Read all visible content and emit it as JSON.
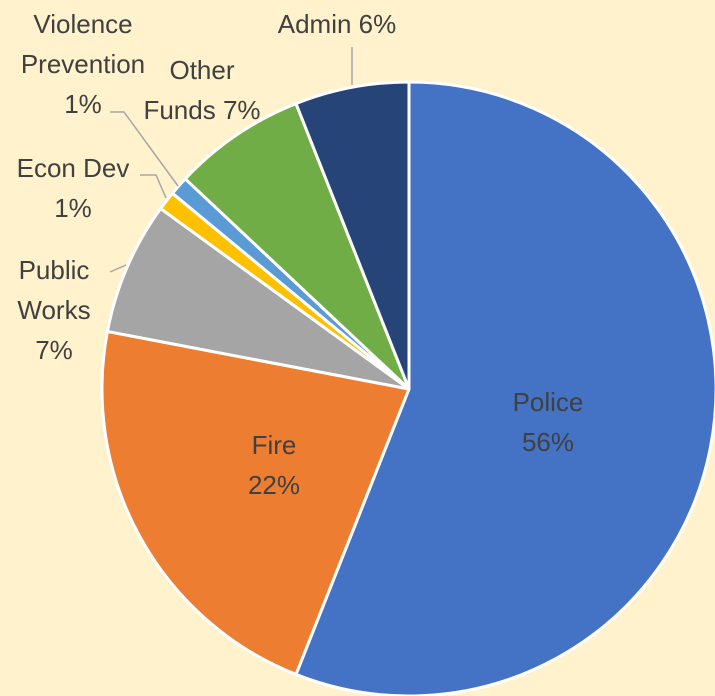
{
  "chart_data": {
    "type": "pie",
    "title": "",
    "start_angle_deg": 0,
    "direction": "clockwise",
    "slices": [
      {
        "category": "Police",
        "value": 56,
        "label_lines": [
          "Police",
          "56%"
        ],
        "color": "#4472c4"
      },
      {
        "category": "Fire",
        "value": 22,
        "label_lines": [
          "Fire",
          "22%"
        ],
        "color": "#ed7d31"
      },
      {
        "category": "Public Works",
        "value": 7,
        "label_lines": [
          "Public",
          "Works",
          "7%"
        ],
        "color": "#a5a5a5"
      },
      {
        "category": "Econ Dev",
        "value": 1,
        "label_lines": [
          "Econ Dev",
          "1%"
        ],
        "color": "#ffc000"
      },
      {
        "category": "Violence Prevention",
        "value": 1,
        "label_lines": [
          "Violence",
          "Prevention",
          "1%"
        ],
        "color": "#5b9bd5"
      },
      {
        "category": "Other Funds",
        "value": 7,
        "label_lines": [
          "Other",
          "Funds 7%"
        ],
        "color": "#70ad47"
      },
      {
        "category": "Admin",
        "value": 6,
        "label_lines": [
          "Admin 6%"
        ],
        "color": "#264478"
      }
    ],
    "legend": "none",
    "background": "#fff2cc",
    "leader_line_color": "#a6a6a6"
  }
}
